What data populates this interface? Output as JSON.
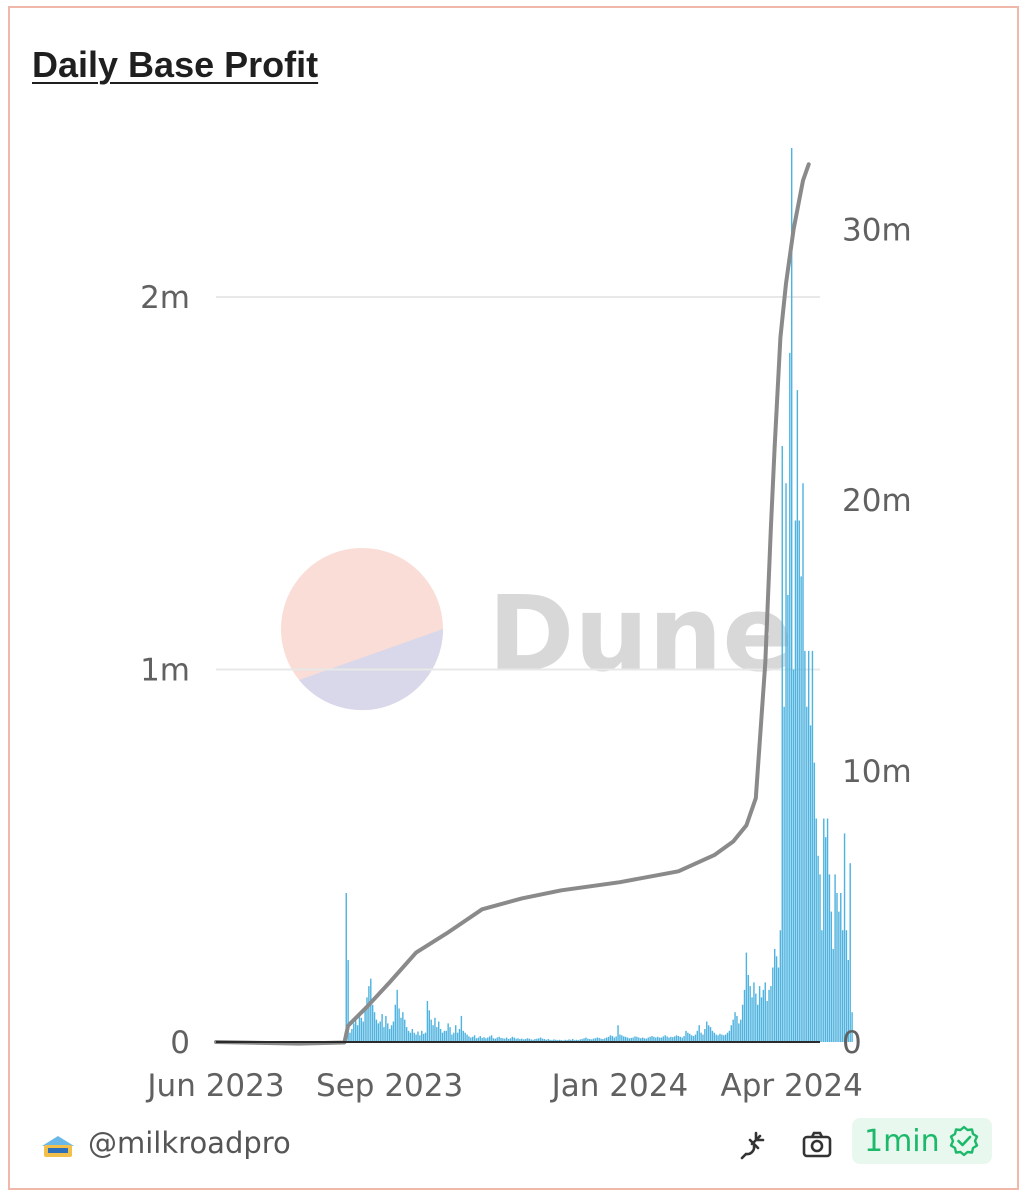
{
  "title": "Daily Base Profit",
  "footer": {
    "handle": "@milkroadpro",
    "refresh_label": "1min",
    "logo_icon": "milkroad-logo",
    "icons": [
      "plug-icon",
      "camera-icon",
      "check-badge-icon"
    ]
  },
  "watermark": {
    "text": "Dune",
    "colors": [
      "#f9ddd6",
      "#d9d8ea",
      "#d8d8d8"
    ]
  },
  "chart_data": {
    "type": "bar",
    "title": "Daily Base Profit",
    "xlabel": "",
    "ylabel": "",
    "grid": true,
    "legend": "none",
    "x_ticks": [
      "Jun 2023",
      "Sep 2023",
      "Jan 2024",
      "Apr 2024"
    ],
    "y_ticks_left": [
      "0",
      "1m",
      "2m"
    ],
    "y_ticks_right": [
      "0",
      "10m",
      "20m",
      "30m"
    ],
    "x_range": [
      "2023-06-01",
      "2024-04-16"
    ],
    "ylim_left": [
      0,
      2400000
    ],
    "ylim_right": [
      0,
      33000000
    ],
    "colors": {
      "bars": "#4fb3df",
      "cumulative": "#8a8a8a",
      "grid": "#e8e8e8"
    },
    "series": [
      {
        "type": "bar",
        "axis": "left",
        "start_date": "2023-08-09",
        "step_days": 1,
        "values": [
          400000,
          220000,
          25000,
          35000,
          50000,
          60000,
          45000,
          80000,
          65000,
          55000,
          90000,
          120000,
          150000,
          170000,
          100000,
          80000,
          60000,
          50000,
          55000,
          75000,
          40000,
          70000,
          50000,
          35000,
          45000,
          55000,
          100000,
          140000,
          90000,
          65000,
          80000,
          60000,
          40000,
          30000,
          25000,
          35000,
          25000,
          20000,
          28000,
          18000,
          30000,
          22000,
          25000,
          110000,
          85000,
          60000,
          45000,
          65000,
          40000,
          55000,
          35000,
          25000,
          30000,
          30000,
          50000,
          40000,
          20000,
          25000,
          45000,
          25000,
          35000,
          70000,
          30000,
          25000,
          20000,
          15000,
          12000,
          14000,
          18000,
          10000,
          12000,
          16000,
          11000,
          13000,
          10000,
          12000,
          15000,
          18000,
          10000,
          9000,
          12000,
          14000,
          11000,
          10000,
          9000,
          12000,
          8000,
          10000,
          14000,
          12000,
          9000,
          10000,
          8000,
          9000,
          7000,
          8000,
          10000,
          9000,
          7000,
          6000,
          8000,
          9000,
          10000,
          12000,
          9000,
          8000,
          6000,
          8000,
          6000,
          5000,
          7000,
          6000,
          5000,
          6000,
          5000,
          4000,
          6000,
          5000,
          7000,
          6000,
          8000,
          5000,
          6000,
          5000,
          7000,
          8000,
          10000,
          12000,
          9000,
          8000,
          7000,
          9000,
          10000,
          12000,
          11000,
          9000,
          8000,
          10000,
          12000,
          14000,
          18000,
          16000,
          12000,
          15000,
          45000,
          20000,
          18000,
          15000,
          14000,
          12000,
          10000,
          11000,
          12000,
          15000,
          14000,
          12000,
          10000,
          12000,
          10000,
          9000,
          12000,
          14000,
          16000,
          14000,
          12000,
          14000,
          12000,
          12000,
          15000,
          18000,
          15000,
          12000,
          14000,
          13000,
          15000,
          18000,
          16000,
          14000,
          12000,
          16000,
          30000,
          25000,
          22000,
          18000,
          16000,
          20000,
          30000,
          45000,
          25000,
          20000,
          35000,
          55000,
          45000,
          40000,
          30000,
          25000,
          20000,
          18000,
          22000,
          20000,
          18000,
          20000,
          25000,
          30000,
          45000,
          60000,
          80000,
          70000,
          50000,
          60000,
          100000,
          140000,
          240000,
          180000,
          150000,
          120000,
          160000,
          130000,
          100000,
          150000,
          120000,
          140000,
          160000,
          110000,
          140000,
          150000,
          200000,
          250000,
          230000,
          200000,
          300000,
          1600000,
          900000,
          1500000,
          1200000,
          1850000,
          2400000,
          1000000,
          1400000,
          1750000,
          1400000,
          1250000,
          1500000,
          1050000,
          900000,
          1050000,
          850000,
          1050000,
          750000,
          600000,
          500000,
          450000,
          300000,
          600000,
          550000,
          600000,
          450000,
          350000,
          250000,
          450000,
          400000,
          350000,
          400000,
          300000,
          560000,
          300000,
          220000,
          480000,
          80000
        ]
      },
      {
        "type": "line",
        "name": "cumulative",
        "axis": "right",
        "points": [
          [
            "2023-06-01",
            0
          ],
          [
            "2023-07-15",
            -60000
          ],
          [
            "2023-08-08",
            -20000
          ],
          [
            "2023-08-10",
            600000
          ],
          [
            "2023-08-20",
            1300000
          ],
          [
            "2023-09-01",
            2200000
          ],
          [
            "2023-09-15",
            3300000
          ],
          [
            "2023-10-01",
            4000000
          ],
          [
            "2023-10-20",
            4900000
          ],
          [
            "2023-11-10",
            5300000
          ],
          [
            "2023-12-01",
            5600000
          ],
          [
            "2024-01-01",
            5900000
          ],
          [
            "2024-02-01",
            6300000
          ],
          [
            "2024-02-20",
            6900000
          ],
          [
            "2024-03-01",
            7400000
          ],
          [
            "2024-03-08",
            8000000
          ],
          [
            "2024-03-13",
            9000000
          ],
          [
            "2024-03-15",
            11000000
          ],
          [
            "2024-03-18",
            14000000
          ],
          [
            "2024-03-21",
            19000000
          ],
          [
            "2024-03-23",
            22000000
          ],
          [
            "2024-03-26",
            26000000
          ],
          [
            "2024-03-29",
            28000000
          ],
          [
            "2024-04-02",
            30000000
          ],
          [
            "2024-04-07",
            31800000
          ],
          [
            "2024-04-10",
            32400000
          ]
        ]
      }
    ]
  }
}
